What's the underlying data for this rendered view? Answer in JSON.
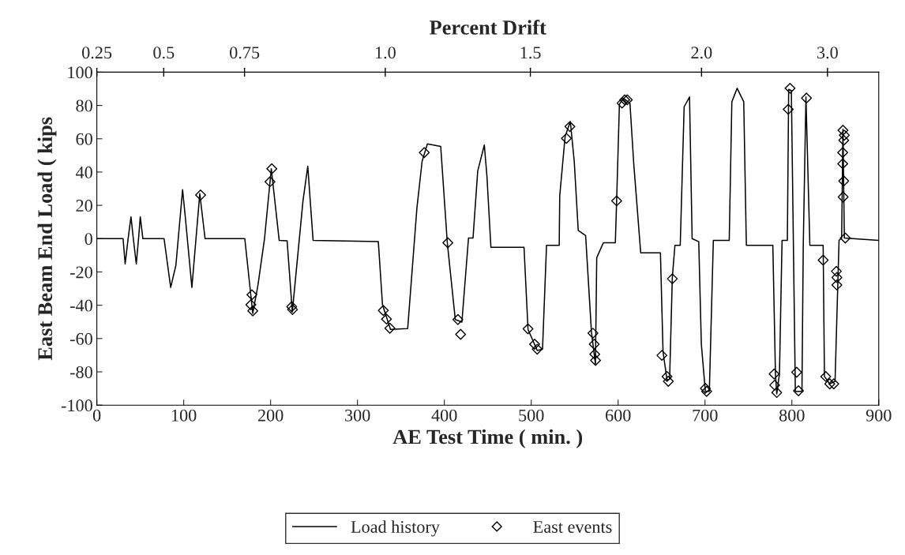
{
  "chart_data": {
    "type": "line",
    "xlabel": "AE Test Time ( min. )",
    "ylabel": "East Beam End Load ( kips",
    "x2label": "Percent Drift",
    "xlim": [
      0,
      900
    ],
    "xticks": [
      0,
      100,
      200,
      300,
      400,
      500,
      600,
      700,
      800,
      900
    ],
    "ylim": [
      -100,
      100
    ],
    "yticks": [
      -100,
      -80,
      -60,
      -40,
      -20,
      0,
      20,
      40,
      60,
      80,
      100
    ],
    "annotations": [
      {
        "text": "0.25",
        "x": 0
      },
      {
        "text": "0.5",
        "x": 77
      },
      {
        "text": "0.75",
        "x": 170
      },
      {
        "text": "1.0",
        "x": 332
      },
      {
        "text": "1.5",
        "x": 499
      },
      {
        "text": "2.0",
        "x": 696
      },
      {
        "text": "3.0",
        "x": 841
      }
    ],
    "grid": false,
    "legend": "bottom",
    "series": [
      {
        "name": "Load history",
        "color": "#000000",
        "line_style": "solid",
        "x": [
          0,
          30.2,
          32.6,
          36,
          39.3,
          42,
          45.4,
          48,
          50,
          53,
          77.4,
          85,
          91,
          98.7,
          102,
          109.4,
          118.5,
          124.6,
          170.3,
          179.5,
          185.5,
          193,
          200.8,
          209.9,
          219,
          225,
          237.3,
          242.8,
          248.9,
          324,
          328.8,
          338,
          357.8,
          368.4,
          374.4,
          380.5,
          395.8,
          403.4,
          412.6,
          420.2,
          427.8,
          433,
          438.4,
          446,
          449,
          453.6,
          491.7,
          496.3,
          506.9,
          513,
          517.6,
          532.2,
          532.8,
          539,
          545,
          549.5,
          554.1,
          562.6,
          569.3,
          573.9,
          575.4,
          583,
          596.8,
          598.3,
          601.5,
          606,
          613.6,
          618,
          626,
          648.7,
          651.7,
          656.3,
          659.3,
          662.4,
          665.4,
          671.5,
          676,
          682.2,
          685.2,
          692.8,
          695.8,
          700.4,
          705,
          709.6,
          727.9,
          730.9,
          737,
          744.6,
          747.6,
          778.1,
          781.1,
          782.6,
          785.7,
          788.7,
          794.8,
          796.3,
          799.4,
          804,
          811.6,
          813.1,
          816.2,
          820.7,
          836,
          837.5,
          843.6,
          849.7,
          854.3,
          857.3,
          858.8,
          860.4,
          900
        ],
        "values": [
          0,
          0,
          -15.2,
          0,
          13.1,
          0,
          -15.2,
          0,
          13.1,
          0,
          0,
          -29.3,
          -16,
          29.4,
          12,
          -29.3,
          27,
          0,
          0,
          -44.9,
          -27.8,
          0,
          42,
          -1,
          -1.3,
          -44,
          22.7,
          43.5,
          -1,
          -1.8,
          -39.7,
          -54.5,
          -54,
          18.3,
          46.5,
          56.9,
          55.4,
          -2.5,
          -48.6,
          -50.1,
          0.4,
          0.4,
          40.6,
          56.2,
          37.6,
          -5.2,
          -5.2,
          -54.5,
          -67.2,
          -66.4,
          -4,
          -4,
          25.7,
          61.4,
          70.3,
          46.5,
          4.9,
          1.9,
          -56,
          -75.3,
          -11.4,
          -2.5,
          -2.5,
          22.7,
          80.7,
          84.4,
          81.4,
          45,
          -8.5,
          -8.5,
          -67.9,
          -85,
          -84.3,
          -23.3,
          -4,
          -4,
          79.2,
          85.1,
          0,
          -1.8,
          -63.4,
          -91.7,
          -91.7,
          -1,
          -1,
          82.2,
          90.3,
          82.2,
          -4,
          -4,
          -81.3,
          -93.2,
          -81.3,
          -1,
          -1,
          89.6,
          88.9,
          -91.7,
          -91.7,
          -4,
          85.1,
          -4,
          -4,
          -82.8,
          -87.2,
          -85.7,
          -1,
          0.4,
          65.8,
          0.4,
          -1
        ]
      },
      {
        "name": "East events",
        "type": "scatter",
        "marker": "diamond",
        "color": "#000000",
        "x": [
          119.4,
          178.5,
          177.3,
          179.5,
          201.4,
          199.3,
          224.3,
          225.2,
          376.9,
          404,
          329.7,
          333.4,
          337.3,
          415.6,
          418.7,
          496.3,
          503.9,
          506.9,
          540.5,
          544.5,
          571,
          572.5,
          573.1,
          574,
          598.3,
          604.5,
          607.6,
          610.6,
          662.4,
          650.4,
          656.3,
          657.8,
          700.4,
          701.9,
          779.6,
          780.2,
          782.6,
          797.9,
          795.8,
          816.8,
          805.5,
          807.6,
          836,
          839,
          843.6,
          848.2,
          851.2,
          851.8,
          851.8,
          858.8,
          860.4,
          859.7,
          858.5,
          858.5,
          859.7,
          859,
          861.5
        ],
        "values": [
          26.2,
          -33.7,
          -39.7,
          -43.4,
          42,
          34.2,
          -40.9,
          -42.6,
          51.7,
          -2.5,
          -43.1,
          -48.3,
          -53.8,
          -48.6,
          -57.5,
          -54.2,
          -63.4,
          -66.4,
          60.2,
          67.3,
          -56.8,
          -63.4,
          -69.4,
          -73.1,
          22.7,
          81.4,
          83.4,
          83.4,
          -24.1,
          -70.1,
          -82.8,
          -85.7,
          -89.9,
          -91.7,
          -81.3,
          -88,
          -92.4,
          90.3,
          77.7,
          84.4,
          -80.2,
          -91.4,
          -12.9,
          -82.8,
          -87.2,
          -87.2,
          -19.6,
          -23.3,
          -27.8,
          65.1,
          62.1,
          59.1,
          51.7,
          45,
          34.6,
          25,
          0.4
        ]
      }
    ]
  }
}
